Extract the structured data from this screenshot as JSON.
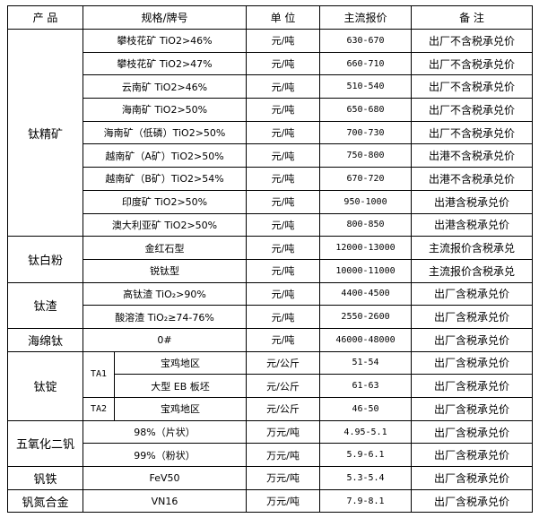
{
  "header": {
    "product": "产 品",
    "spec": "规格/牌号",
    "unit": "单 位",
    "price": "主流报价",
    "note": "备 注"
  },
  "groups": [
    {
      "product": "钛精矿",
      "rows": [
        {
          "spec": "攀枝花矿 TiO2>46%",
          "unit": "元/吨",
          "price": "630-670",
          "note": "出厂不含税承兑价"
        },
        {
          "spec": "攀枝花矿 TiO2>47%",
          "unit": "元/吨",
          "price": "660-710",
          "note": "出厂不含税承兑价"
        },
        {
          "spec": "云南矿 TiO2>46%",
          "unit": "元/吨",
          "price": "510-540",
          "note": "出厂不含税承兑价"
        },
        {
          "spec": "海南矿 TiO2>50%",
          "unit": "元/吨",
          "price": "650-680",
          "note": "出厂不含税承兑价"
        },
        {
          "spec": "海南矿（低磷）TiO2>50%",
          "unit": "元/吨",
          "price": "700-730",
          "note": "出厂不含税承兑价"
        },
        {
          "spec": "越南矿（A矿）TiO2>50%",
          "unit": "元/吨",
          "price": "750-800",
          "note": "出港不含税承兑价"
        },
        {
          "spec": "越南矿（B矿）TiO2>54%",
          "unit": "元/吨",
          "price": "670-720",
          "note": "出港不含税承兑价"
        },
        {
          "spec": "印度矿 TiO2>50%",
          "unit": "元/吨",
          "price": "950-1000",
          "note": "出港含税承兑价"
        },
        {
          "spec": "澳大利亚矿 TiO2>50%",
          "unit": "元/吨",
          "price": "800-850",
          "note": "出港含税承兑价"
        }
      ]
    },
    {
      "product": "钛白粉",
      "rows": [
        {
          "spec": "金红石型",
          "unit": "元/吨",
          "price": "12000-13000",
          "note": "主流报价含税承兑"
        },
        {
          "spec": "锐钛型",
          "unit": "元/吨",
          "price": "10000-11000",
          "note": "主流报价含税承兑"
        }
      ]
    },
    {
      "product": "钛渣",
      "rows": [
        {
          "spec": "高钛渣 TiO₂>90%",
          "unit": "元/吨",
          "price": "4400-4500",
          "note": "出厂含税承兑价"
        },
        {
          "spec": "酸溶渣 TiO₂≥74-76%",
          "unit": "元/吨",
          "price": "2550-2600",
          "note": "出厂含税承兑价"
        }
      ]
    },
    {
      "product": "海绵钛",
      "rows": [
        {
          "spec": "0#",
          "unit": "元/吨",
          "price": "46000-48000",
          "note": "出厂含税承兑价"
        }
      ]
    },
    {
      "product": "钛锭",
      "rows": [
        {
          "grade": "TA1",
          "spec": "宝鸡地区",
          "unit": "元/公斤",
          "price": "51-54",
          "note": "出厂含税承兑价"
        },
        {
          "spec": "大型 EB 板坯",
          "unit": "元/公斤",
          "price": "61-63",
          "note": "出厂含税承兑价"
        },
        {
          "grade": "TA2",
          "spec": "宝鸡地区",
          "unit": "元/公斤",
          "price": "46-50",
          "note": "出厂含税承兑价"
        }
      ]
    },
    {
      "product": "五氧化二钒",
      "rows": [
        {
          "spec": "98%（片状）",
          "unit": "万元/吨",
          "price": "4.95-5.1",
          "note": "出厂含税承兑价"
        },
        {
          "spec": "99%（粉状）",
          "unit": "万元/吨",
          "price": "5.9-6.1",
          "note": "出厂含税承兑价"
        }
      ]
    },
    {
      "product": "钒铁",
      "rows": [
        {
          "spec": "FeV50",
          "unit": "万元/吨",
          "price": "5.3-5.4",
          "note": "出厂含税承兑价"
        }
      ]
    },
    {
      "product": "钒氮合金",
      "rows": [
        {
          "spec": "VN16",
          "unit": "万元/吨",
          "price": "7.9-8.1",
          "note": "出厂含税承兑价"
        }
      ]
    }
  ]
}
